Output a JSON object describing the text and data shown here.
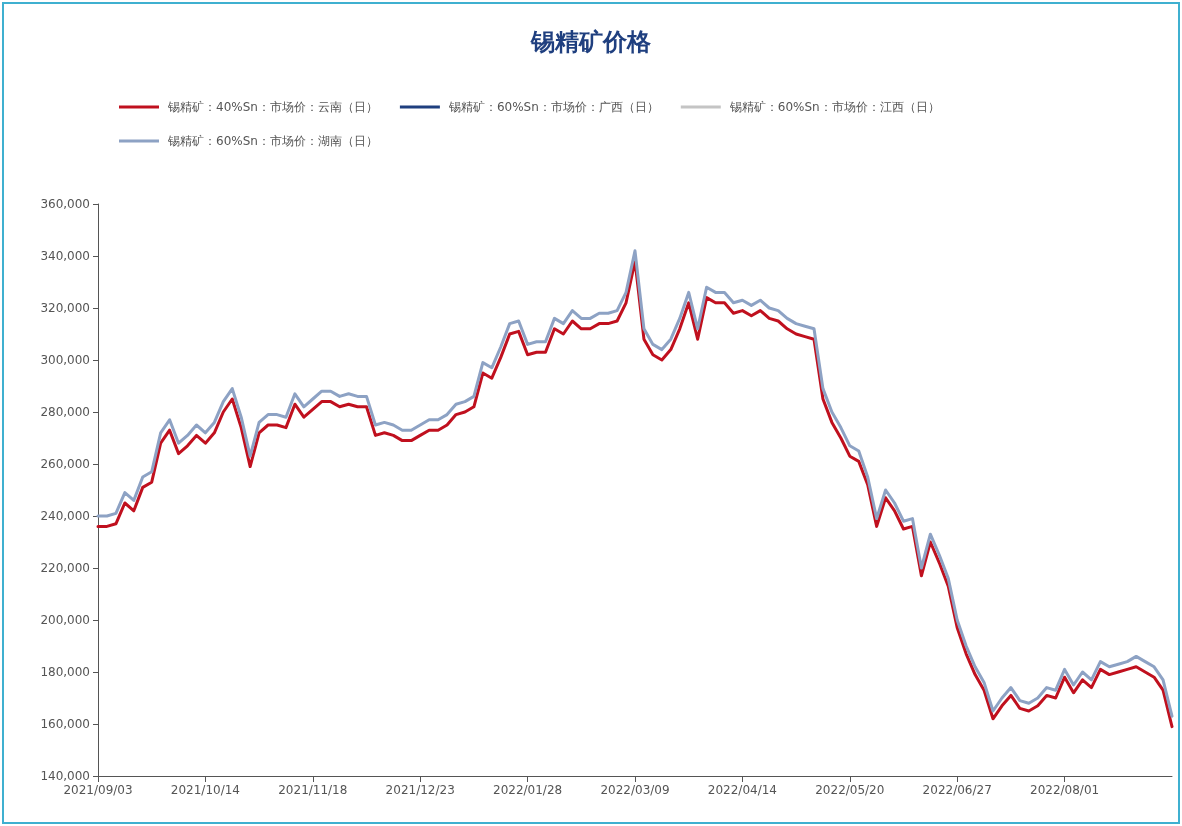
{
  "chart_data": {
    "type": "line",
    "title": "锡精矿价格",
    "legend": "top",
    "grid": false,
    "marker": "none",
    "line_style": "solid",
    "categories": [
      "2021/09/03",
      null,
      null,
      null,
      null,
      null,
      null,
      null,
      null,
      null,
      null,
      null,
      "2021/10/14",
      null,
      null,
      null,
      null,
      null,
      null,
      null,
      null,
      null,
      null,
      null,
      "2021/11/18",
      null,
      null,
      null,
      null,
      null,
      null,
      null,
      null,
      null,
      null,
      null,
      "2021/12/23",
      null,
      null,
      null,
      null,
      null,
      null,
      null,
      null,
      null,
      null,
      null,
      "2022/01/28",
      null,
      null,
      null,
      null,
      null,
      null,
      null,
      null,
      null,
      null,
      null,
      "2022/03/09",
      null,
      null,
      null,
      null,
      null,
      null,
      null,
      null,
      null,
      null,
      null,
      "2022/04/14",
      null,
      null,
      null,
      null,
      null,
      null,
      null,
      null,
      null,
      null,
      null,
      "2022/05/20",
      null,
      null,
      null,
      null,
      null,
      null,
      null,
      null,
      null,
      null,
      null,
      "2022/06/27",
      null,
      null,
      null,
      null,
      null,
      null,
      null,
      null,
      null,
      null,
      null,
      "2022/08/01",
      null,
      null,
      null,
      null,
      null,
      null,
      null,
      null,
      null,
      null,
      null,
      null
    ],
    "ylim": [
      140000,
      360000
    ],
    "yticks": [
      {
        "value": 140000,
        "label": "140,000"
      },
      {
        "value": 160000,
        "label": "160,000"
      },
      {
        "value": 180000,
        "label": "180,000"
      },
      {
        "value": 200000,
        "label": "200,000"
      },
      {
        "value": 220000,
        "label": "220,000"
      },
      {
        "value": 240000,
        "label": "240,000"
      },
      {
        "value": 260000,
        "label": "260,000"
      },
      {
        "value": 280000,
        "label": "280,000"
      },
      {
        "value": 300000,
        "label": "300,000"
      },
      {
        "value": 320000,
        "label": "320,000"
      },
      {
        "value": 340000,
        "label": "340,000"
      },
      {
        "value": 360000,
        "label": "360,000"
      }
    ],
    "series": [
      {
        "name": "锡精矿：40%Sn：市场价：云南（日）",
        "color": "#c0101e",
        "values": [
          236000,
          236000,
          237000,
          245000,
          242000,
          251000,
          253000,
          268000,
          273000,
          264000,
          267000,
          271000,
          268000,
          272000,
          280000,
          285000,
          274000,
          259000,
          272000,
          275000,
          275000,
          274000,
          283000,
          278000,
          281000,
          284000,
          284000,
          282000,
          283000,
          282000,
          282000,
          271000,
          272000,
          271000,
          269000,
          269000,
          271000,
          273000,
          273000,
          275000,
          279000,
          280000,
          282000,
          295000,
          293000,
          301000,
          310000,
          311000,
          302000,
          303000,
          303000,
          312000,
          310000,
          315000,
          312000,
          312000,
          314000,
          314000,
          315000,
          322000,
          338000,
          308000,
          302000,
          300000,
          304000,
          312000,
          322000,
          308000,
          324000,
          322000,
          322000,
          318000,
          319000,
          317000,
          319000,
          316000,
          315000,
          312000,
          310000,
          309000,
          308000,
          285000,
          276000,
          270000,
          263000,
          261000,
          252000,
          236000,
          247000,
          242000,
          235000,
          236000,
          217000,
          230000,
          222000,
          213000,
          197000,
          187000,
          179000,
          173000,
          162000,
          167000,
          171000,
          166000,
          165000,
          167000,
          171000,
          170000,
          178000,
          172000,
          177000,
          174000,
          181000,
          179000,
          180000,
          181000,
          182000,
          180000,
          178000,
          173000,
          159000
        ]
      },
      {
        "name": "锡精矿：60%Sn：市场价：广西（日）",
        "color": "#1f3f7f",
        "values": [
          null,
          null,
          null,
          null,
          null,
          null,
          null,
          null,
          null,
          null,
          null,
          null,
          null,
          null,
          null,
          null,
          null,
          null,
          null,
          null,
          null,
          null,
          null,
          null,
          null,
          null,
          null,
          null,
          null,
          null,
          null,
          null,
          null,
          null,
          null,
          null,
          null,
          null,
          null,
          null,
          null,
          null,
          null,
          null,
          null,
          null,
          null,
          null,
          null,
          null,
          null,
          null,
          null,
          null,
          null,
          null,
          null,
          null,
          null,
          null,
          null,
          null,
          null,
          null,
          null,
          null,
          null,
          null,
          null,
          null,
          null,
          null,
          null,
          null,
          null,
          null,
          null,
          null,
          null,
          null,
          null,
          null,
          null,
          null,
          null,
          null,
          null,
          null,
          null,
          null,
          null,
          null,
          null,
          null,
          null,
          null,
          null,
          null,
          null,
          null,
          null,
          null,
          null,
          null,
          null,
          null,
          null,
          null,
          null,
          null,
          null,
          null,
          null,
          null,
          null,
          null,
          null,
          null,
          null,
          null,
          null
        ]
      },
      {
        "name": "锡精矿：60%Sn：市场价：江西（日）",
        "color": "#c4c4c4",
        "values": [
          null,
          null,
          null,
          null,
          null,
          null,
          null,
          null,
          null,
          null,
          null,
          null,
          null,
          null,
          null,
          null,
          null,
          null,
          null,
          null,
          null,
          null,
          null,
          null,
          null,
          null,
          null,
          null,
          null,
          null,
          null,
          null,
          null,
          null,
          null,
          null,
          null,
          null,
          null,
          null,
          null,
          null,
          null,
          null,
          null,
          null,
          null,
          null,
          null,
          null,
          null,
          null,
          null,
          null,
          null,
          null,
          null,
          null,
          null,
          null,
          null,
          null,
          null,
          null,
          null,
          null,
          null,
          null,
          null,
          null,
          null,
          null,
          null,
          null,
          null,
          null,
          null,
          null,
          null,
          null,
          null,
          null,
          null,
          null,
          null,
          null,
          null,
          null,
          null,
          null,
          null,
          null,
          null,
          null,
          null,
          null,
          null,
          null,
          null,
          null,
          null,
          null,
          null,
          null,
          null,
          null,
          null,
          null,
          null,
          null,
          null,
          null,
          null,
          null,
          null,
          null,
          null,
          null,
          null,
          null,
          null
        ]
      },
      {
        "name": "锡精矿：60%Sn：市场价：湖南（日）",
        "color": "#8da2c4",
        "values": [
          240000,
          240000,
          241000,
          249000,
          246000,
          255000,
          257000,
          272000,
          277000,
          268000,
          271000,
          275000,
          272000,
          276000,
          284000,
          289000,
          278000,
          263000,
          276000,
          279000,
          279000,
          278000,
          287000,
          282000,
          285000,
          288000,
          288000,
          286000,
          287000,
          286000,
          286000,
          275000,
          276000,
          275000,
          273000,
          273000,
          275000,
          277000,
          277000,
          279000,
          283000,
          284000,
          286000,
          299000,
          297000,
          305000,
          314000,
          315000,
          306000,
          307000,
          307000,
          316000,
          314000,
          319000,
          316000,
          316000,
          318000,
          318000,
          319000,
          326000,
          342000,
          312000,
          306000,
          304000,
          308000,
          316000,
          326000,
          312000,
          328000,
          326000,
          326000,
          322000,
          323000,
          321000,
          323000,
          320000,
          319000,
          316000,
          314000,
          313000,
          312000,
          289000,
          280000,
          274000,
          267000,
          265000,
          255000,
          239000,
          250000,
          245000,
          238000,
          239000,
          220000,
          233000,
          225000,
          216000,
          200000,
          190000,
          182000,
          176000,
          165000,
          170000,
          174000,
          169000,
          168000,
          170000,
          174000,
          173000,
          181000,
          175000,
          180000,
          177000,
          184000,
          182000,
          183000,
          184000,
          186000,
          184000,
          182000,
          177000,
          163000
        ]
      }
    ]
  }
}
